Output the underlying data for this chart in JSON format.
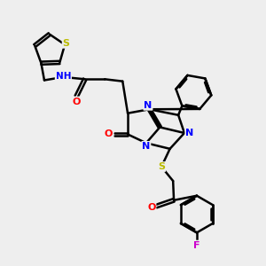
{
  "bg_color": "#eeeeee",
  "bond_color": "#000000",
  "bond_width": 1.8,
  "atom_colors": {
    "N": "#0000ff",
    "O": "#ff0000",
    "S": "#bbbb00",
    "F": "#cc00cc",
    "H": "#888888",
    "C": "#000000"
  },
  "font_size": 8.0
}
